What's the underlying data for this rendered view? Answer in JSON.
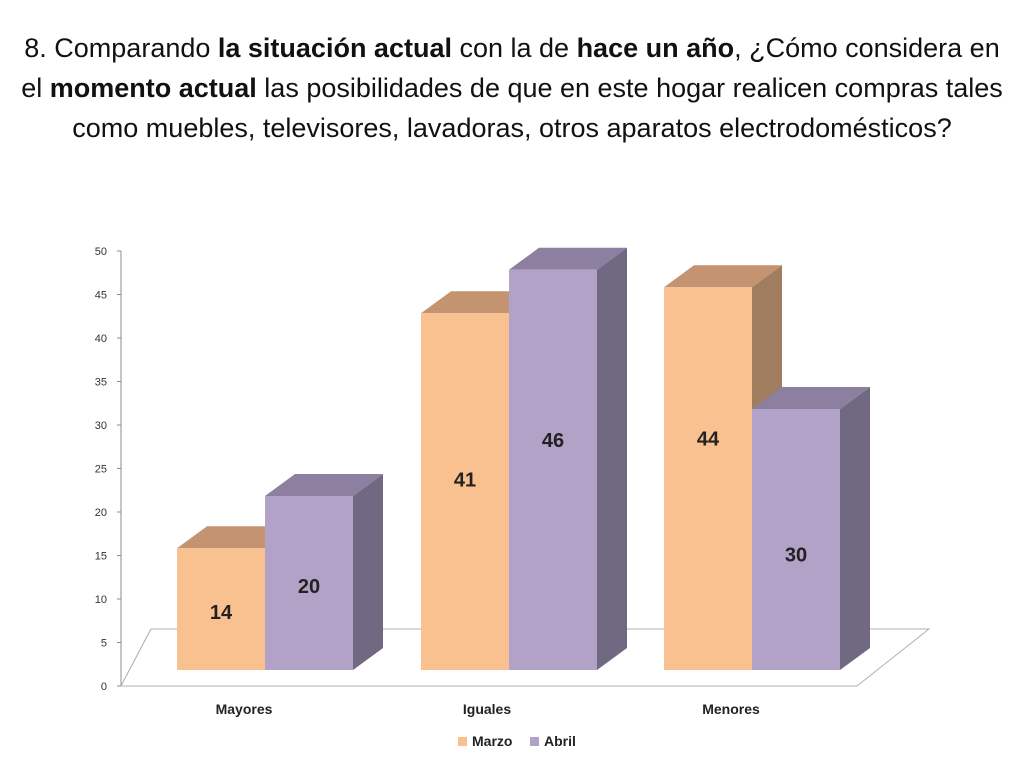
{
  "title": {
    "p1": "8. Comparando ",
    "b1": "la situación actual",
    "p2": " con la de ",
    "b2": "hace un año",
    "p3": ", ¿Cómo considera en el ",
    "b3": "momento actual",
    "p4": " las posibilidades de que en este hogar realicen compras tales como muebles, televisores, lavadoras, otros aparatos electrodomésticos?"
  },
  "chart_data": {
    "type": "bar",
    "categories": [
      "Mayores",
      "Iguales",
      "Menores"
    ],
    "series": [
      {
        "name": "Marzo",
        "values": [
          14,
          41,
          44
        ],
        "color": "#F9C190",
        "side_color": "#A07D5E",
        "top_color": "#C49470"
      },
      {
        "name": "Abril",
        "values": [
          20,
          46,
          30
        ],
        "color": "#B3A2C7",
        "side_color": "#716882",
        "top_color": "#8C7FA0"
      }
    ],
    "y_ticks": [
      "0",
      "5",
      "10",
      "15",
      "20",
      "25",
      "30",
      "35",
      "40",
      "45",
      "50"
    ],
    "ylim": [
      0,
      50
    ],
    "xlabel": "",
    "ylabel": "",
    "data_labels": true,
    "legend_position": "bottom",
    "grid": false,
    "style": "3d-clustered-column"
  }
}
